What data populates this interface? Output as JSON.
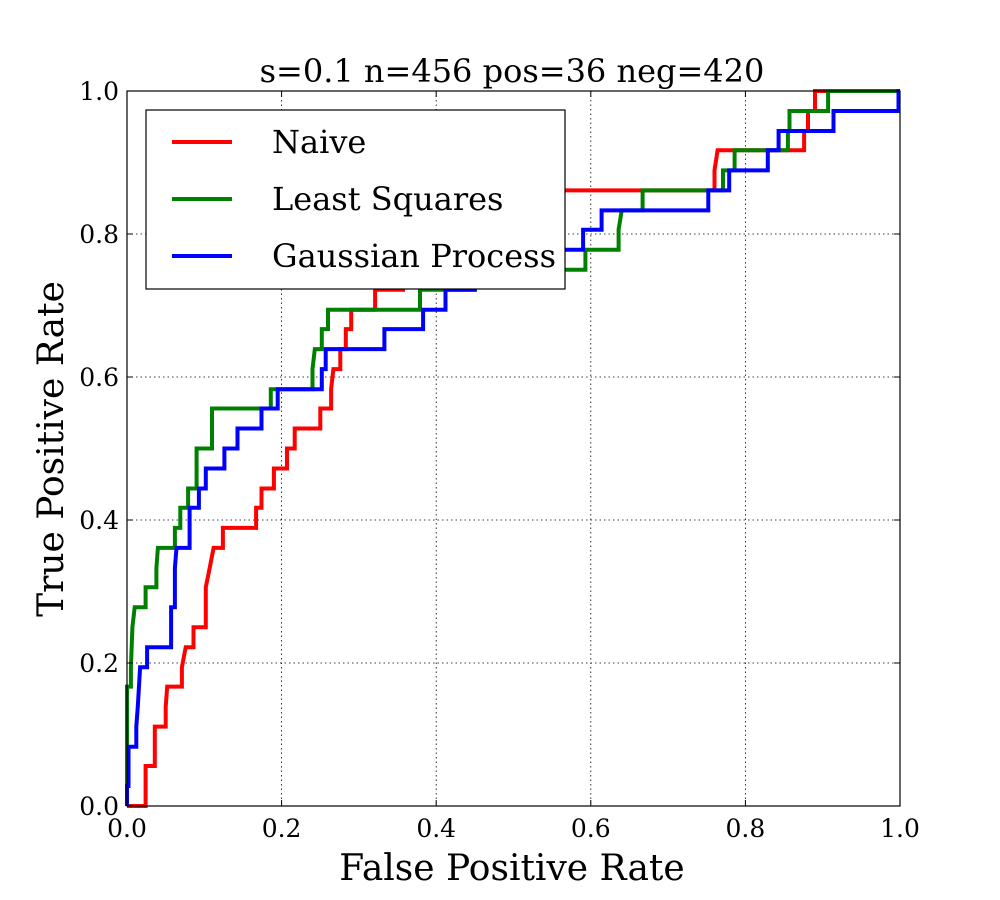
{
  "chart_data": {
    "type": "line",
    "title": "s=0.1 n=456 pos=36 neg=420",
    "xlabel": "False Positive Rate",
    "ylabel": "True Positive Rate",
    "xlim": [
      0.0,
      1.0
    ],
    "ylim": [
      0.0,
      1.0
    ],
    "grid": true,
    "legend_position": "top-left",
    "x_ticks": [
      "0.0",
      "0.2",
      "0.4",
      "0.6",
      "0.8",
      "1.0"
    ],
    "y_ticks": [
      "0.0",
      "0.2",
      "0.4",
      "0.6",
      "0.8",
      "1.0"
    ],
    "series": [
      {
        "name": "Naive",
        "color": "#ff0000",
        "points": [
          [
            0.0,
            0.0
          ],
          [
            0.024,
            0.0
          ],
          [
            0.024,
            0.056
          ],
          [
            0.036,
            0.056
          ],
          [
            0.036,
            0.083
          ],
          [
            0.036,
            0.111
          ],
          [
            0.05,
            0.111
          ],
          [
            0.05,
            0.139
          ],
          [
            0.052,
            0.167
          ],
          [
            0.071,
            0.167
          ],
          [
            0.071,
            0.194
          ],
          [
            0.076,
            0.222
          ],
          [
            0.086,
            0.222
          ],
          [
            0.086,
            0.25
          ],
          [
            0.102,
            0.25
          ],
          [
            0.102,
            0.306
          ],
          [
            0.107,
            0.333
          ],
          [
            0.112,
            0.361
          ],
          [
            0.124,
            0.361
          ],
          [
            0.124,
            0.389
          ],
          [
            0.167,
            0.389
          ],
          [
            0.167,
            0.417
          ],
          [
            0.174,
            0.417
          ],
          [
            0.174,
            0.444
          ],
          [
            0.19,
            0.444
          ],
          [
            0.19,
            0.472
          ],
          [
            0.207,
            0.472
          ],
          [
            0.207,
            0.5
          ],
          [
            0.217,
            0.5
          ],
          [
            0.217,
            0.528
          ],
          [
            0.25,
            0.528
          ],
          [
            0.25,
            0.556
          ],
          [
            0.264,
            0.556
          ],
          [
            0.264,
            0.583
          ],
          [
            0.267,
            0.611
          ],
          [
            0.276,
            0.611
          ],
          [
            0.276,
            0.639
          ],
          [
            0.283,
            0.639
          ],
          [
            0.283,
            0.667
          ],
          [
            0.29,
            0.667
          ],
          [
            0.29,
            0.694
          ],
          [
            0.321,
            0.694
          ],
          [
            0.321,
            0.722
          ],
          [
            0.357,
            0.722
          ],
          [
            0.357,
            0.75
          ],
          [
            0.39,
            0.75
          ],
          [
            0.39,
            0.778
          ],
          [
            0.4,
            0.778
          ],
          [
            0.4,
            0.806
          ],
          [
            0.414,
            0.806
          ],
          [
            0.414,
            0.833
          ],
          [
            0.45,
            0.833
          ],
          [
            0.45,
            0.861
          ],
          [
            0.7,
            0.861
          ],
          [
            0.76,
            0.861
          ],
          [
            0.76,
            0.889
          ],
          [
            0.764,
            0.917
          ],
          [
            0.786,
            0.917
          ],
          [
            0.876,
            0.917
          ],
          [
            0.876,
            0.944
          ],
          [
            0.881,
            0.944
          ],
          [
            0.881,
            0.972
          ],
          [
            0.89,
            0.972
          ],
          [
            0.89,
            1.0
          ],
          [
            1.0,
            1.0
          ]
        ]
      },
      {
        "name": "Least Squares",
        "color": "#008000",
        "points": [
          [
            0.0,
            0.0
          ],
          [
            0.0,
            0.167
          ],
          [
            0.005,
            0.167
          ],
          [
            0.005,
            0.194
          ],
          [
            0.007,
            0.25
          ],
          [
            0.01,
            0.278
          ],
          [
            0.024,
            0.278
          ],
          [
            0.024,
            0.306
          ],
          [
            0.038,
            0.306
          ],
          [
            0.038,
            0.333
          ],
          [
            0.04,
            0.361
          ],
          [
            0.062,
            0.361
          ],
          [
            0.062,
            0.389
          ],
          [
            0.069,
            0.389
          ],
          [
            0.069,
            0.417
          ],
          [
            0.079,
            0.417
          ],
          [
            0.079,
            0.444
          ],
          [
            0.09,
            0.444
          ],
          [
            0.09,
            0.5
          ],
          [
            0.11,
            0.5
          ],
          [
            0.11,
            0.556
          ],
          [
            0.186,
            0.556
          ],
          [
            0.186,
            0.583
          ],
          [
            0.24,
            0.583
          ],
          [
            0.24,
            0.611
          ],
          [
            0.243,
            0.639
          ],
          [
            0.252,
            0.639
          ],
          [
            0.252,
            0.667
          ],
          [
            0.26,
            0.667
          ],
          [
            0.26,
            0.694
          ],
          [
            0.379,
            0.694
          ],
          [
            0.379,
            0.722
          ],
          [
            0.45,
            0.722
          ],
          [
            0.45,
            0.75
          ],
          [
            0.555,
            0.75
          ],
          [
            0.593,
            0.75
          ],
          [
            0.593,
            0.778
          ],
          [
            0.636,
            0.778
          ],
          [
            0.636,
            0.806
          ],
          [
            0.64,
            0.833
          ],
          [
            0.667,
            0.833
          ],
          [
            0.667,
            0.861
          ],
          [
            0.771,
            0.861
          ],
          [
            0.771,
            0.889
          ],
          [
            0.786,
            0.889
          ],
          [
            0.786,
            0.917
          ],
          [
            0.855,
            0.917
          ],
          [
            0.855,
            0.944
          ],
          [
            0.857,
            0.944
          ],
          [
            0.857,
            0.972
          ],
          [
            0.907,
            0.972
          ],
          [
            0.907,
            1.0
          ],
          [
            1.0,
            1.0
          ]
        ]
      },
      {
        "name": "Gaussian Process",
        "color": "#0000ff",
        "points": [
          [
            0.0,
            0.0
          ],
          [
            0.0,
            0.028
          ],
          [
            0.002,
            0.028
          ],
          [
            0.002,
            0.083
          ],
          [
            0.012,
            0.083
          ],
          [
            0.012,
            0.111
          ],
          [
            0.014,
            0.139
          ],
          [
            0.017,
            0.194
          ],
          [
            0.026,
            0.194
          ],
          [
            0.026,
            0.222
          ],
          [
            0.057,
            0.222
          ],
          [
            0.057,
            0.278
          ],
          [
            0.062,
            0.278
          ],
          [
            0.062,
            0.333
          ],
          [
            0.064,
            0.361
          ],
          [
            0.081,
            0.361
          ],
          [
            0.081,
            0.417
          ],
          [
            0.093,
            0.417
          ],
          [
            0.093,
            0.444
          ],
          [
            0.102,
            0.444
          ],
          [
            0.102,
            0.472
          ],
          [
            0.126,
            0.472
          ],
          [
            0.126,
            0.5
          ],
          [
            0.143,
            0.5
          ],
          [
            0.143,
            0.528
          ],
          [
            0.174,
            0.528
          ],
          [
            0.174,
            0.556
          ],
          [
            0.195,
            0.556
          ],
          [
            0.195,
            0.583
          ],
          [
            0.252,
            0.583
          ],
          [
            0.252,
            0.611
          ],
          [
            0.257,
            0.611
          ],
          [
            0.257,
            0.639
          ],
          [
            0.333,
            0.639
          ],
          [
            0.333,
            0.667
          ],
          [
            0.383,
            0.667
          ],
          [
            0.383,
            0.694
          ],
          [
            0.412,
            0.694
          ],
          [
            0.412,
            0.722
          ],
          [
            0.45,
            0.722
          ],
          [
            0.455,
            0.75
          ],
          [
            0.524,
            0.75
          ],
          [
            0.524,
            0.778
          ],
          [
            0.59,
            0.778
          ],
          [
            0.59,
            0.806
          ],
          [
            0.614,
            0.806
          ],
          [
            0.614,
            0.833
          ],
          [
            0.752,
            0.833
          ],
          [
            0.752,
            0.861
          ],
          [
            0.779,
            0.861
          ],
          [
            0.779,
            0.889
          ],
          [
            0.829,
            0.889
          ],
          [
            0.829,
            0.917
          ],
          [
            0.843,
            0.917
          ],
          [
            0.843,
            0.944
          ],
          [
            0.914,
            0.944
          ],
          [
            0.914,
            0.972
          ],
          [
            0.998,
            0.972
          ],
          [
            0.998,
            1.0
          ],
          [
            1.0,
            1.0
          ]
        ]
      }
    ]
  }
}
